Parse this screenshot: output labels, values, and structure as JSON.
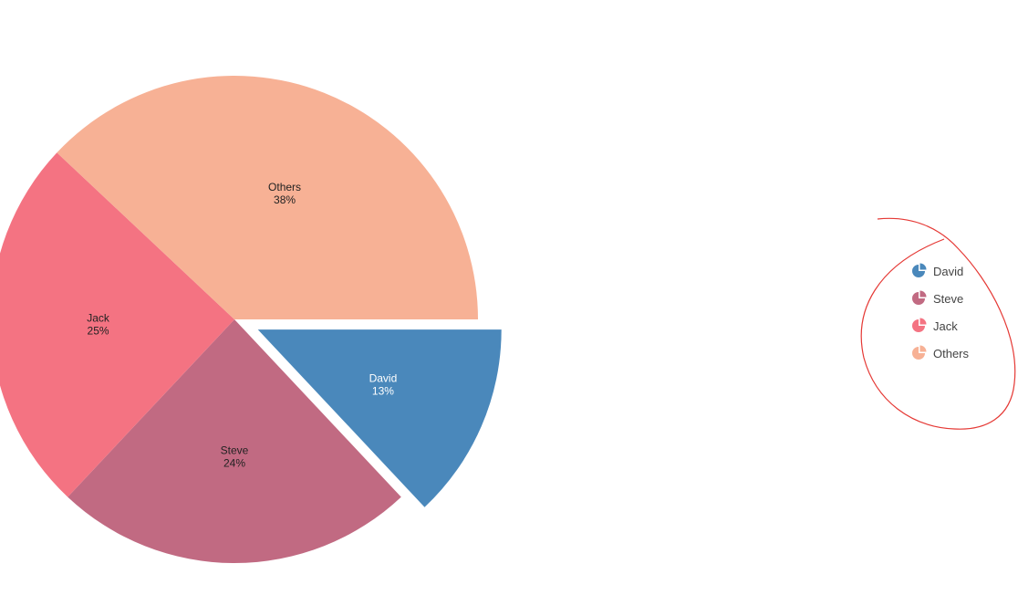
{
  "chart_data": {
    "type": "pie",
    "slices": [
      {
        "label": "David",
        "value": 13,
        "value_text": "13%",
        "color": "#4a88bb",
        "exploded": true
      },
      {
        "label": "Steve",
        "value": 24,
        "value_text": "24%",
        "color": "#c16a82"
      },
      {
        "label": "Jack",
        "value": 25,
        "value_text": "25%",
        "color": "#f47382"
      },
      {
        "label": "Others",
        "value": 38,
        "value_text": "38%",
        "color": "#f7b195"
      }
    ],
    "legend": {
      "position": "right",
      "items": [
        "David",
        "Steve",
        "Jack",
        "Others"
      ]
    },
    "annotation": {
      "type": "hand-drawn circle around legend",
      "color": "#e53935"
    }
  }
}
